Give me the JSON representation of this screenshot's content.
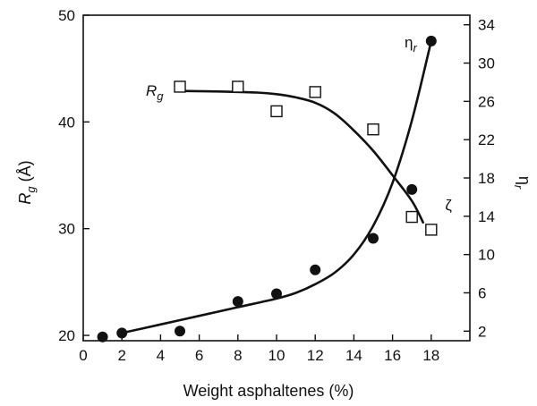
{
  "chart_data": {
    "type": "scatter",
    "x_axis": {
      "label": "Weight asphaltenes (%)",
      "range": [
        0,
        20
      ],
      "ticks": [
        0,
        2,
        4,
        6,
        8,
        10,
        12,
        14,
        16,
        18
      ]
    },
    "y_left": {
      "label_main": "R",
      "label_sub": "g",
      "label_unit": " (Å)",
      "range": [
        19.5,
        50
      ],
      "ticks": [
        20,
        30,
        40,
        50
      ]
    },
    "y_right": {
      "label_main": "η",
      "label_sub": "r",
      "range": [
        1.0,
        35.0
      ],
      "ticks": [
        2,
        6,
        10,
        14,
        18,
        22,
        26,
        30,
        34
      ]
    },
    "series": [
      {
        "name_main": "R",
        "name_sub": "g",
        "axis": "left",
        "marker": "open-square",
        "points": [
          [
            5,
            43.3
          ],
          [
            8,
            43.3
          ],
          [
            10,
            41.0
          ],
          [
            12,
            42.8
          ],
          [
            15,
            39.3
          ],
          [
            17,
            31.1
          ],
          [
            18,
            29.9
          ]
        ],
        "fit_curve": [
          [
            5,
            42.9
          ],
          [
            7,
            42.85
          ],
          [
            9,
            42.75
          ],
          [
            10,
            42.6
          ],
          [
            11,
            42.3
          ],
          [
            12,
            41.8
          ],
          [
            13,
            40.8
          ],
          [
            14,
            39.2
          ],
          [
            15,
            37.3
          ],
          [
            16,
            35.0
          ],
          [
            17,
            32.6
          ],
          [
            17.6,
            30.5
          ]
        ]
      },
      {
        "name_main": "η",
        "name_sub": "r",
        "axis": "right",
        "marker": "filled-circle",
        "points": [
          [
            1,
            1.4
          ],
          [
            2,
            1.8
          ],
          [
            5,
            2.0
          ],
          [
            8,
            5.1
          ],
          [
            10,
            5.9
          ],
          [
            12,
            8.4
          ],
          [
            15,
            11.7
          ],
          [
            17,
            16.8
          ],
          [
            18,
            32.3
          ]
        ],
        "fit_curve": [
          [
            2,
            1.8
          ],
          [
            4,
            2.7
          ],
          [
            6,
            3.6
          ],
          [
            8,
            4.5
          ],
          [
            10,
            5.4
          ],
          [
            11,
            6.0
          ],
          [
            12,
            6.9
          ],
          [
            13,
            8.1
          ],
          [
            14,
            10.0
          ],
          [
            15,
            13.0
          ],
          [
            16,
            17.5
          ],
          [
            17,
            24.0
          ],
          [
            18,
            32.3
          ]
        ]
      }
    ],
    "annotations": [
      {
        "text": "ζ",
        "x": 19.0,
        "y_right": 15.2
      }
    ]
  }
}
